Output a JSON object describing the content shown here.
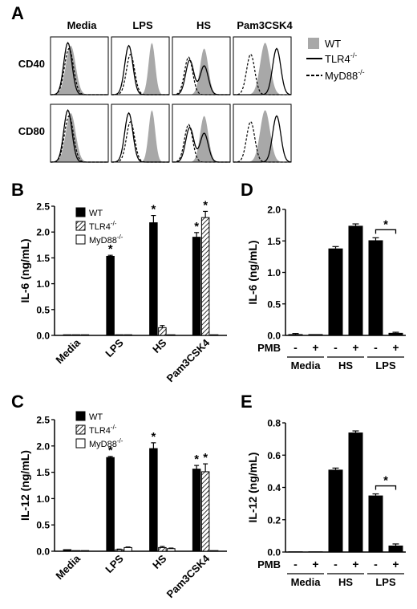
{
  "panel_letters": [
    "A",
    "B",
    "C",
    "D",
    "E"
  ],
  "colors": {
    "wt_fill": "#a8a8a8",
    "bar": "#000000"
  },
  "panel_a": {
    "columns": [
      "Media",
      "LPS",
      "HS",
      "Pam3CSK4"
    ],
    "rows": [
      "CD40",
      "CD80"
    ],
    "legend": [
      {
        "label": "WT",
        "sup": "",
        "style": "gray-fill"
      },
      {
        "label": "TLR4",
        "sup": "-/-",
        "style": "solid"
      },
      {
        "label": "MyD88",
        "sup": "-/-",
        "style": "dashed"
      }
    ]
  },
  "chart_data": [
    {
      "panel": "B",
      "type": "bar",
      "ylabel": "IL-6 (ng/mL)",
      "ylim": [
        0,
        2.5
      ],
      "yticks": [
        "0.0",
        "0.5",
        "1.0",
        "1.5",
        "2.0",
        "2.5"
      ],
      "categories": [
        "Media",
        "LPS",
        "HS",
        "Pam3CSK4"
      ],
      "legend": [
        {
          "label": "WT",
          "sup": ""
        },
        {
          "label": "TLR4",
          "sup": "-/-"
        },
        {
          "label": "MyD88",
          "sup": "-/-"
        }
      ],
      "series": [
        {
          "style": "solid",
          "values": [
            0.01,
            1.53,
            2.18,
            1.9
          ],
          "errors": [
            0,
            0.02,
            0.14,
            0.09
          ],
          "stars": [
            false,
            true,
            true,
            true
          ]
        },
        {
          "style": "hatch",
          "values": [
            0.0,
            0.01,
            0.15,
            2.28
          ],
          "errors": [
            0,
            0,
            0.04,
            0.12
          ],
          "stars": [
            false,
            false,
            false,
            true
          ]
        },
        {
          "style": "open",
          "values": [
            0.0,
            0.01,
            0.01,
            0.01
          ],
          "errors": [
            0,
            0,
            0,
            0
          ],
          "stars": [
            false,
            false,
            false,
            false
          ]
        }
      ]
    },
    {
      "panel": "C",
      "type": "bar",
      "ylabel": "IL-12 (ng/mL)",
      "ylim": [
        0,
        2.5
      ],
      "yticks": [
        "0.0",
        "0.5",
        "1.0",
        "1.5",
        "2.0",
        "2.5"
      ],
      "categories": [
        "Media",
        "LPS",
        "HS",
        "Pam3CSK4"
      ],
      "legend": [
        {
          "label": "WT",
          "sup": ""
        },
        {
          "label": "TLR4",
          "sup": "-/-"
        },
        {
          "label": "MyD88",
          "sup": "-/-"
        }
      ],
      "series": [
        {
          "style": "solid",
          "values": [
            0.03,
            1.78,
            1.95,
            1.56
          ],
          "errors": [
            0,
            0.02,
            0.11,
            0.07
          ],
          "stars": [
            false,
            true,
            true,
            true
          ]
        },
        {
          "style": "hatch",
          "values": [
            0.0,
            0.03,
            0.07,
            1.51
          ],
          "errors": [
            0,
            0.01,
            0.02,
            0.15
          ],
          "stars": [
            false,
            false,
            false,
            true
          ]
        },
        {
          "style": "open",
          "values": [
            0.0,
            0.07,
            0.05,
            0.01
          ],
          "errors": [
            0,
            0.01,
            0.01,
            0
          ],
          "stars": [
            false,
            false,
            false,
            false
          ]
        }
      ]
    },
    {
      "panel": "D",
      "type": "bar",
      "ylabel": "IL-6 (ng/mL)",
      "ylim": [
        0,
        2.0
      ],
      "yticks": [
        "0.0",
        "0.5",
        "1.0",
        "1.5",
        "2.0"
      ],
      "pmb_label": "PMB",
      "pmb_signs": [
        "-",
        "+",
        "-",
        "+",
        "-",
        "+"
      ],
      "groups": [
        "Media",
        "HS",
        "LPS"
      ],
      "values": [
        0.02,
        0.02,
        1.38,
        1.74,
        1.51,
        0.04
      ],
      "errors": [
        0.01,
        0.0,
        0.03,
        0.03,
        0.04,
        0.01
      ],
      "significance": {
        "between": [
          4,
          5
        ],
        "label": "*"
      }
    },
    {
      "panel": "E",
      "type": "bar",
      "ylabel": "IL-12 (ng/mL)",
      "ylim": [
        0,
        0.8
      ],
      "yticks": [
        "0.0",
        "0.2",
        "0.4",
        "0.6",
        "0.8"
      ],
      "pmb_label": "PMB",
      "pmb_signs": [
        "-",
        "+",
        "-",
        "+",
        "-",
        "+"
      ],
      "groups": [
        "Media",
        "HS",
        "LPS"
      ],
      "values": [
        0.0,
        0.0,
        0.51,
        0.74,
        0.35,
        0.04
      ],
      "errors": [
        0,
        0,
        0.01,
        0.01,
        0.01,
        0.01
      ],
      "significance": {
        "between": [
          4,
          5
        ],
        "label": "*"
      }
    }
  ]
}
